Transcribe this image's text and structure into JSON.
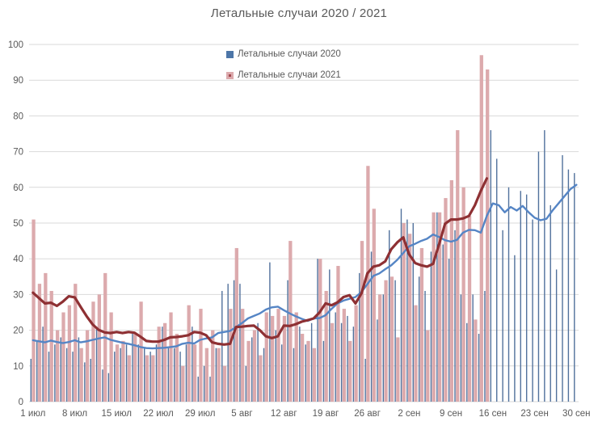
{
  "title": "Летальные случаи 2020 / 2021",
  "legend": [
    {
      "label": "Летальные случаи 2020",
      "swatch_color": "#4d76a8",
      "swatch_core": "#4d76a8"
    },
    {
      "label": "Летальные случаи 2021",
      "swatch_color": "#dcaaad",
      "swatch_core": "#a2494f"
    }
  ],
  "colors": {
    "bar_2020": "#51719c",
    "bar_2021": "#dcaaad",
    "line_2020": "#5585c5",
    "line_2021": "#8e3033",
    "grid": "#d9d9d9",
    "axis_text": "#595959",
    "title_text": "#595959"
  },
  "chart_data": {
    "type": "bar",
    "title": "Летальные случаи 2020 / 2021",
    "xlabel": "",
    "ylabel": "",
    "ylim": [
      0,
      100
    ],
    "y_ticks": [
      0,
      10,
      20,
      30,
      40,
      50,
      60,
      70,
      80,
      90,
      100
    ],
    "grid": true,
    "legend_position": "top-center",
    "x_unit": "day",
    "x_range": "1 июл — 30 сен (92 дня)",
    "x_tick_labels": [
      "1 июл",
      "8 июл",
      "15 июл",
      "22 июл",
      "29 июл",
      "5 авг",
      "12 авг",
      "19 авг",
      "26 авг",
      "2 сен",
      "9 сен",
      "16 сен",
      "23 сен",
      "30 сен"
    ],
    "x_tick_day_indexes": [
      0,
      7,
      14,
      21,
      28,
      35,
      42,
      49,
      56,
      63,
      70,
      77,
      84,
      91
    ],
    "series": [
      {
        "name": "Летальные случаи 2020",
        "type": "bar",
        "values": [
          12,
          17,
          21,
          14,
          16,
          18,
          15,
          14,
          18,
          11,
          12,
          21,
          9,
          8,
          14,
          15,
          16,
          19,
          16,
          15,
          14,
          16,
          21,
          15,
          15,
          14,
          16,
          21,
          7,
          10,
          7,
          15,
          31,
          33,
          34,
          33,
          10,
          18,
          22,
          15,
          39,
          20,
          16,
          34,
          15,
          21,
          16,
          22,
          40,
          17,
          37,
          25,
          22,
          24,
          21,
          36,
          12,
          42,
          23,
          30,
          48,
          34,
          54,
          51,
          50,
          35,
          31,
          42,
          53,
          44,
          40,
          48,
          30,
          22,
          30,
          19,
          31,
          76,
          68,
          48,
          60,
          41,
          59,
          58,
          51,
          70,
          76,
          55,
          37,
          69,
          65,
          64
        ]
      },
      {
        "name": "Летальные случаи 2021",
        "type": "bar",
        "values": [
          51,
          33,
          36,
          31,
          20,
          25,
          27,
          33,
          15,
          20,
          28,
          30,
          36,
          25,
          16,
          17,
          13,
          19,
          28,
          13,
          13,
          21,
          22,
          25,
          19,
          10,
          27,
          16,
          26,
          15,
          20,
          15,
          10,
          26,
          43,
          26,
          17,
          20,
          13,
          25,
          24,
          26,
          24,
          45,
          25,
          19,
          17,
          15,
          40,
          31,
          22,
          38,
          26,
          17,
          27,
          45,
          66,
          54,
          30,
          34,
          35,
          18,
          50,
          47,
          27,
          43,
          20,
          53,
          53,
          57,
          62,
          76,
          60,
          52,
          23,
          97,
          93,
          null,
          null,
          null,
          null,
          null,
          null,
          null,
          null,
          null,
          null,
          null,
          null,
          null,
          null,
          null
        ]
      },
      {
        "name": "trend_2020",
        "type": "line",
        "values": [
          17.2,
          16.9,
          16.6,
          17.1,
          16.7,
          16.4,
          16.7,
          17.2,
          16.6,
          16.9,
          17.3,
          17.7,
          18.0,
          17.3,
          16.9,
          16.5,
          16.2,
          15.8,
          15.3,
          15.0,
          14.9,
          15.0,
          15.1,
          15.3,
          15.5,
          16.2,
          16.5,
          16.3,
          17.3,
          17.7,
          18.0,
          19.2,
          19.5,
          19.8,
          20.9,
          22.0,
          23.3,
          24.0,
          24.7,
          25.8,
          26.4,
          26.6,
          25.6,
          24.7,
          23.9,
          23.2,
          22.6,
          23.3,
          23.4,
          24.2,
          26.0,
          27.5,
          28.3,
          28.8,
          29.3,
          30.7,
          32.9,
          35.2,
          35.9,
          37.1,
          38.2,
          39.7,
          41.6,
          43.5,
          44.2,
          45.0,
          45.6,
          46.8,
          46.1,
          45.2,
          44.8,
          45.3,
          47.3,
          48.1,
          48.0,
          47.3,
          52.0,
          55.5,
          55.0,
          53.0,
          54.5,
          53.5,
          54.8,
          53.0,
          51.5,
          50.8,
          51.2,
          53.5,
          55.5,
          57.5,
          59.5,
          60.7
        ]
      },
      {
        "name": "trend_2021",
        "type": "line",
        "values": [
          30.5,
          29.0,
          27.5,
          27.7,
          26.8,
          28.0,
          29.5,
          29.2,
          26.5,
          23.9,
          21.6,
          20.1,
          19.4,
          19.2,
          19.5,
          19.2,
          19.5,
          19.3,
          18.2,
          17.0,
          16.8,
          16.8,
          17.3,
          18.0,
          18.1,
          18.3,
          18.6,
          19.5,
          19.3,
          18.6,
          16.6,
          16.2,
          16.0,
          16.2,
          20.9,
          21.0,
          21.2,
          21.3,
          20.0,
          18.3,
          17.8,
          18.3,
          21.3,
          21.2,
          21.7,
          22.4,
          22.8,
          23.3,
          25.0,
          27.5,
          27.0,
          27.8,
          29.3,
          29.8,
          27.5,
          30.3,
          35.9,
          37.8,
          38.2,
          39.3,
          42.7,
          44.6,
          46.0,
          41.2,
          38.8,
          38.2,
          37.8,
          38.6,
          44.0,
          49.8,
          51.0,
          51.0,
          51.3,
          52.0,
          55.0,
          59.0,
          62.5,
          null,
          null,
          null,
          null,
          null,
          null,
          null,
          null,
          null,
          null,
          null,
          null,
          null,
          null,
          null
        ]
      }
    ]
  }
}
